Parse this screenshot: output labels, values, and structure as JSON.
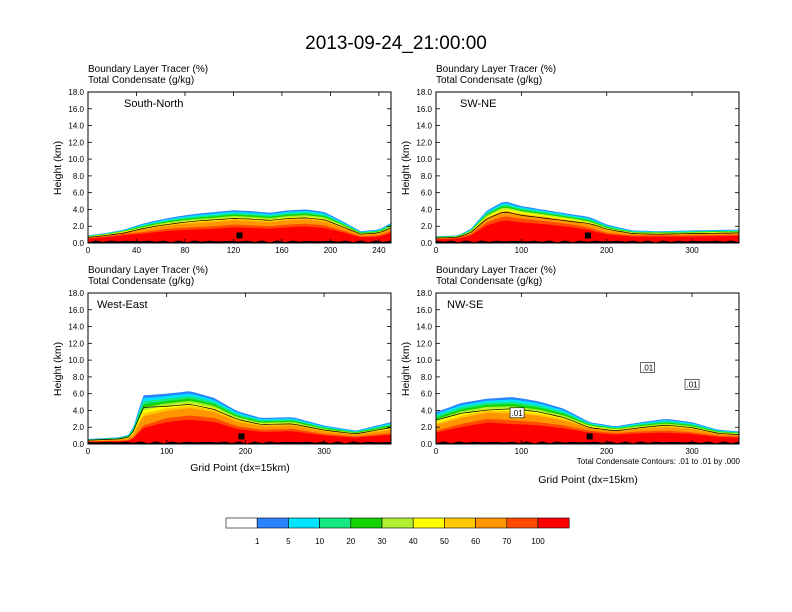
{
  "figure": {
    "title": "2013-09-24_21:00:00",
    "subtitle_tracer": "Boundary Layer Tracer   (%)",
    "subtitle_condensate": "Total Condensate   (g/kg)",
    "contour_note": "Total Condensate Contours: .01 to .01 by .000",
    "ylabel": "Height (km)",
    "xlabel": "Grid Point (dx=15km)"
  },
  "colorbar": {
    "labels": [
      "1",
      "5",
      "10",
      "20",
      "30",
      "40",
      "50",
      "60",
      "70",
      "100"
    ],
    "colors": [
      "#ffffff",
      "#2a84ff",
      "#00e4ff",
      "#14e882",
      "#14d400",
      "#b0f032",
      "#ffff00",
      "#ffc800",
      "#ff9600",
      "#ff4a00",
      "#ff0000"
    ]
  },
  "chart_data": [
    {
      "type": "heatmap",
      "panel": "South-North",
      "title": "South-North",
      "xlabel": "",
      "ylabel": "Height (km)",
      "xlim": [
        0,
        250
      ],
      "ylim": [
        0,
        18
      ],
      "x_ticks": [
        "0",
        "40",
        "80",
        "120",
        "160",
        "200",
        "240"
      ],
      "y_ticks": [
        "0.0",
        "2.0",
        "4.0",
        "6.0",
        "8.0",
        "10.0",
        "12.0",
        "14.0",
        "16.0",
        "18.0"
      ],
      "layer_top_km": [
        [
          0,
          0.6
        ],
        [
          15,
          0.8
        ],
        [
          30,
          1.1
        ],
        [
          45,
          1.3
        ],
        [
          60,
          1.6
        ],
        [
          75,
          1.8
        ],
        [
          90,
          1.9
        ],
        [
          105,
          2.0
        ],
        [
          120,
          2.2
        ],
        [
          135,
          2.1
        ],
        [
          150,
          2.0
        ],
        [
          165,
          2.2
        ],
        [
          180,
          2.3
        ],
        [
          195,
          2.1
        ],
        [
          210,
          1.5
        ],
        [
          225,
          0.8
        ],
        [
          240,
          0.9
        ],
        [
          250,
          1.4
        ]
      ],
      "cloud_top_km": [
        [
          0,
          0.9
        ],
        [
          15,
          1.2
        ],
        [
          30,
          1.6
        ],
        [
          45,
          2.3
        ],
        [
          60,
          2.8
        ],
        [
          75,
          3.2
        ],
        [
          90,
          3.5
        ],
        [
          105,
          3.7
        ],
        [
          120,
          3.9
        ],
        [
          135,
          3.8
        ],
        [
          150,
          3.6
        ],
        [
          165,
          3.9
        ],
        [
          180,
          4.0
        ],
        [
          195,
          3.7
        ],
        [
          210,
          2.6
        ],
        [
          225,
          1.4
        ],
        [
          240,
          1.6
        ],
        [
          250,
          2.4
        ]
      ],
      "contour_km": [
        0.01
      ]
    },
    {
      "type": "heatmap",
      "panel": "SW-NE",
      "title": "SW-NE",
      "xlabel": "",
      "ylabel": "Height (km)",
      "xlim": [
        0,
        355
      ],
      "ylim": [
        0,
        18
      ],
      "x_ticks": [
        "0",
        "100",
        "200",
        "300"
      ],
      "y_ticks": [
        "0.0",
        "2.0",
        "4.0",
        "6.0",
        "8.0",
        "10.0",
        "12.0",
        "14.0",
        "16.0",
        "18.0"
      ],
      "layer_top_km": [
        [
          0,
          0.5
        ],
        [
          25,
          0.6
        ],
        [
          40,
          1.0
        ],
        [
          60,
          2.5
        ],
        [
          80,
          3.2
        ],
        [
          100,
          2.9
        ],
        [
          130,
          2.6
        ],
        [
          160,
          2.2
        ],
        [
          180,
          1.8
        ],
        [
          200,
          1.2
        ],
        [
          230,
          0.9
        ],
        [
          260,
          0.9
        ],
        [
          300,
          0.9
        ],
        [
          355,
          1.0
        ]
      ],
      "cloud_top_km": [
        [
          0,
          0.8
        ],
        [
          25,
          0.9
        ],
        [
          40,
          1.6
        ],
        [
          60,
          3.9
        ],
        [
          80,
          5.0
        ],
        [
          100,
          4.4
        ],
        [
          130,
          3.9
        ],
        [
          160,
          3.4
        ],
        [
          180,
          3.1
        ],
        [
          200,
          2.2
        ],
        [
          230,
          1.5
        ],
        [
          260,
          1.4
        ],
        [
          300,
          1.5
        ],
        [
          355,
          1.6
        ]
      ],
      "contour_km": [
        0.01
      ]
    },
    {
      "type": "heatmap",
      "panel": "West-East",
      "title": "West-East",
      "xlabel": "Grid Point (dx=15km)",
      "ylabel": "Height (km)",
      "xlim": [
        0,
        385
      ],
      "ylim": [
        0,
        18
      ],
      "x_ticks": [
        "0",
        "100",
        "200",
        "300"
      ],
      "y_ticks": [
        "0.0",
        "2.0",
        "4.0",
        "6.0",
        "8.0",
        "10.0",
        "12.0",
        "14.0",
        "16.0",
        "18.0"
      ],
      "layer_top_km": [
        [
          0,
          0.3
        ],
        [
          40,
          0.4
        ],
        [
          55,
          0.5
        ],
        [
          70,
          2.2
        ],
        [
          100,
          3.1
        ],
        [
          130,
          3.4
        ],
        [
          160,
          3.1
        ],
        [
          190,
          2.1
        ],
        [
          220,
          1.7
        ],
        [
          260,
          1.8
        ],
        [
          300,
          1.2
        ],
        [
          340,
          0.9
        ],
        [
          385,
          1.3
        ]
      ],
      "cloud_top_km": [
        [
          0,
          0.6
        ],
        [
          40,
          0.8
        ],
        [
          55,
          1.2
        ],
        [
          70,
          5.8
        ],
        [
          100,
          6.0
        ],
        [
          130,
          6.3
        ],
        [
          160,
          5.5
        ],
        [
          190,
          3.9
        ],
        [
          220,
          3.1
        ],
        [
          260,
          3.2
        ],
        [
          300,
          2.2
        ],
        [
          340,
          1.6
        ],
        [
          385,
          2.6
        ]
      ],
      "contour_km": [
        0.01
      ]
    },
    {
      "type": "heatmap",
      "panel": "NW-SE",
      "title": "NW-SE",
      "xlabel": "Grid Point (dx=15km)",
      "ylabel": "Height (km)",
      "xlim": [
        0,
        355
      ],
      "ylim": [
        0,
        18
      ],
      "x_ticks": [
        "0",
        "100",
        "200",
        "300"
      ],
      "y_ticks": [
        "0.0",
        "2.0",
        "4.0",
        "6.0",
        "8.0",
        "10.0",
        "12.0",
        "14.0",
        "16.0",
        "18.0"
      ],
      "layer_top_km": [
        [
          0,
          1.6
        ],
        [
          30,
          2.4
        ],
        [
          60,
          3.0
        ],
        [
          90,
          2.8
        ],
        [
          120,
          2.6
        ],
        [
          150,
          2.2
        ],
        [
          180,
          1.6
        ],
        [
          210,
          1.3
        ],
        [
          240,
          1.5
        ],
        [
          270,
          1.6
        ],
        [
          300,
          1.4
        ],
        [
          330,
          1.0
        ],
        [
          355,
          0.9
        ]
      ],
      "cloud_top_km": [
        [
          0,
          3.8
        ],
        [
          30,
          4.9
        ],
        [
          60,
          5.4
        ],
        [
          90,
          5.6
        ],
        [
          120,
          5.1
        ],
        [
          150,
          4.2
        ],
        [
          180,
          2.6
        ],
        [
          210,
          2.1
        ],
        [
          240,
          2.6
        ],
        [
          270,
          3.0
        ],
        [
          300,
          2.6
        ],
        [
          330,
          1.7
        ],
        [
          355,
          1.5
        ]
      ],
      "contour_km": [
        0.01
      ],
      "contour_labels": [
        ".01",
        ".01",
        ".01"
      ]
    }
  ]
}
